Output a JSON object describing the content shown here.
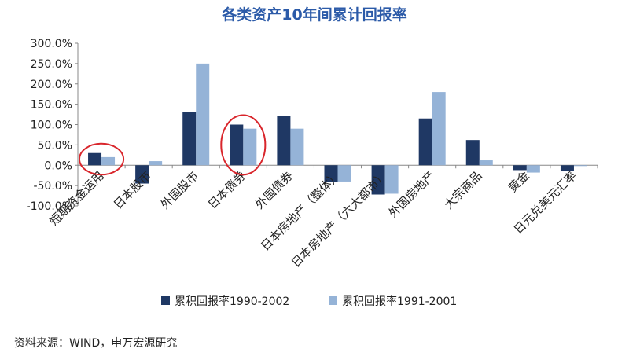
{
  "chart_data": {
    "type": "bar",
    "title": "各类资产10年间累计回报率",
    "categories": [
      "短期资金运用",
      "日本股市",
      "外国股市",
      "日本债券",
      "外国债券",
      "日本房地产（整体）",
      "日本房地产（六大都市）",
      "外国房地产",
      "大宗商品",
      "黄金",
      "日元兑美元汇率"
    ],
    "series": [
      {
        "name": "累积回报率1990-2002",
        "color": "#1f3864",
        "values": [
          30,
          -45,
          130,
          100,
          122,
          -42,
          -72,
          115,
          62,
          -12,
          -15
        ]
      },
      {
        "name": "累积回报率1991-2001",
        "color": "#95b3d7",
        "values": [
          20,
          10,
          250,
          90,
          90,
          -40,
          -70,
          180,
          12,
          -18,
          -2
        ]
      }
    ],
    "yticks": [
      "300.0%",
      "250.0%",
      "200.0%",
      "150.0%",
      "100.0%",
      "50.0%",
      "0.0%",
      "-50.0%",
      "-100.0%"
    ],
    "ylim": [
      -100,
      300
    ],
    "legend_position": "bottom",
    "highlighted_categories": [
      "短期资金运用",
      "日本债券"
    ],
    "highlight_color": "#d9262c"
  },
  "source_note": "资料来源：WIND，申万宏源研究"
}
